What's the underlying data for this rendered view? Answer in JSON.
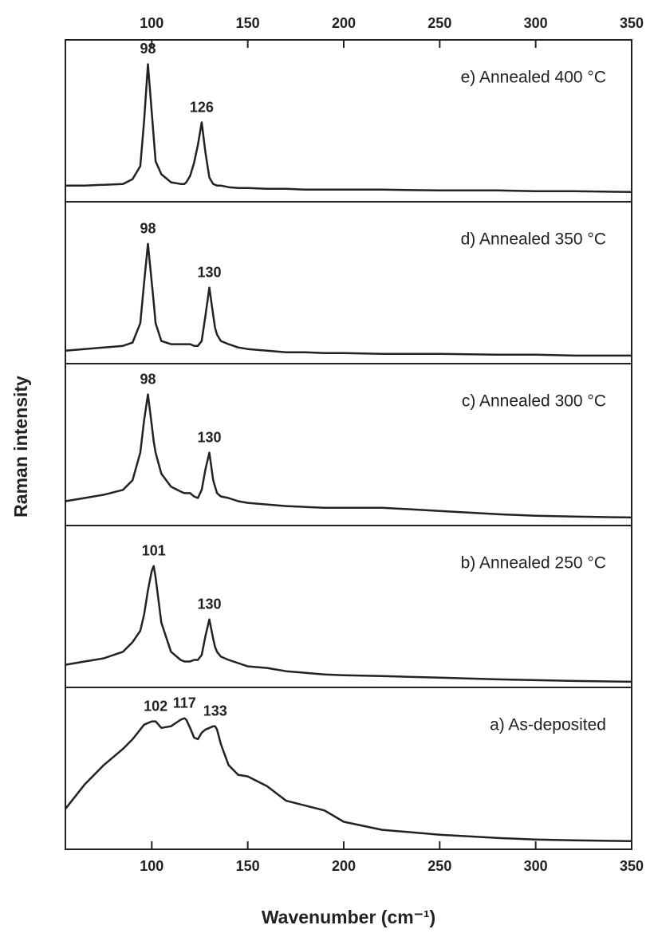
{
  "chart_data": {
    "type": "line",
    "xlabel": "Wavenumber (cm⁻¹)",
    "ylabel": "Raman intensity",
    "xlim": [
      55,
      350
    ],
    "ylim": [
      0,
      100
    ],
    "xticks": [
      100,
      150,
      200,
      250,
      300,
      350
    ],
    "x": [
      55,
      65,
      75,
      85,
      90,
      94,
      96,
      98,
      100,
      101,
      102,
      105,
      110,
      115,
      117,
      118,
      120,
      122,
      124,
      126,
      128,
      130,
      132,
      133,
      134,
      136,
      140,
      145,
      150,
      160,
      170,
      180,
      190,
      200,
      220,
      250,
      280,
      300,
      320,
      350
    ],
    "series": [
      {
        "name": "e) Annealed 400 °C",
        "color": "#222222",
        "peaks": [
          98,
          126
        ],
        "values": [
          10,
          10,
          10.5,
          11,
          14,
          22,
          50,
          85,
          55,
          40,
          25,
          17,
          12,
          11,
          11,
          12,
          16,
          24,
          35,
          49,
          30,
          15,
          11,
          10.5,
          10,
          10,
          9,
          8.5,
          8.5,
          8,
          8,
          7.5,
          7.5,
          7.5,
          7.5,
          7,
          7,
          6.5,
          6.5,
          6
        ]
      },
      {
        "name": "d) Annealed 350 °C",
        "color": "#222222",
        "peaks": [
          98,
          130
        ],
        "values": [
          8,
          9,
          10,
          11,
          13,
          25,
          50,
          74,
          50,
          38,
          25,
          14,
          12,
          12,
          12,
          12,
          12,
          11,
          11,
          14,
          30,
          47,
          30,
          22,
          18,
          14,
          12,
          10,
          9,
          8,
          7,
          7,
          6.5,
          6.5,
          6,
          6,
          5.5,
          5.5,
          5,
          5
        ]
      },
      {
        "name": "c) Annealed 300 °C",
        "color": "#222222",
        "peaks": [
          98,
          130
        ],
        "values": [
          15,
          17,
          19,
          22,
          28,
          45,
          65,
          81,
          62,
          52,
          45,
          32,
          24,
          21,
          20,
          20,
          20,
          18,
          17,
          22,
          35,
          45,
          28,
          24,
          20,
          18,
          17,
          15,
          14,
          13,
          12,
          11.5,
          11,
          11,
          11,
          9,
          7,
          6,
          5.5,
          5
        ]
      },
      {
        "name": "b) Annealed 250 °C",
        "color": "#222222",
        "peaks": [
          101,
          130
        ],
        "values": [
          14,
          16,
          18,
          22,
          28,
          35,
          45,
          60,
          72,
          75,
          68,
          40,
          22,
          17,
          16,
          16,
          16,
          17,
          17,
          20,
          32,
          42,
          30,
          25,
          22,
          19,
          17,
          15,
          13,
          12,
          10,
          9,
          8,
          7.5,
          7,
          6,
          5,
          4.5,
          4,
          3.5
        ]
      },
      {
        "name": "a) As-deposited",
        "color": "#222222",
        "peaks": [
          102,
          117,
          133
        ],
        "values": [
          25,
          40,
          52,
          62,
          68,
          74,
          77,
          78,
          79,
          79,
          79,
          75,
          76,
          80,
          81,
          80,
          75,
          69,
          68,
          72,
          74,
          75,
          76,
          76,
          74,
          65,
          52,
          46,
          45,
          39,
          30,
          27,
          24,
          17,
          12,
          9,
          7,
          6,
          5.5,
          5
        ]
      }
    ]
  }
}
